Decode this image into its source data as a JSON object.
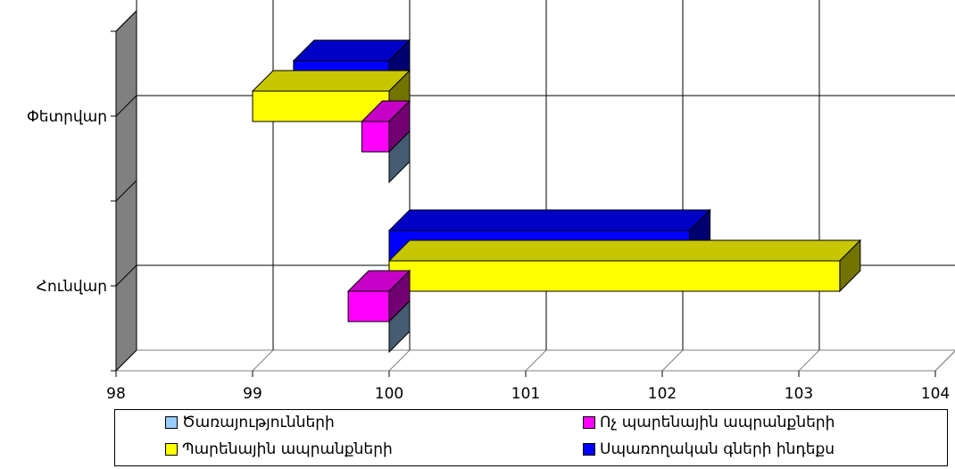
{
  "chart_data": {
    "type": "bar",
    "orientation": "horizontal",
    "categories": [
      "Հունվար",
      "Փետրվար"
    ],
    "xlim": [
      98,
      104
    ],
    "xticks": [
      "98",
      "99",
      "100",
      "101",
      "102",
      "103",
      "104"
    ],
    "baseline": 100,
    "grid": true,
    "legend_position": "bottom",
    "series": [
      {
        "name": "Ծառայությունների",
        "color": "#99ccff",
        "values": [
          100.0,
          100.0
        ]
      },
      {
        "name": "Ոչ պարենային ապրանքների",
        "color": "#ff00ff",
        "values": [
          99.7,
          99.8
        ]
      },
      {
        "name": "Պարենային ապրանքների",
        "color": "#ffff00",
        "values": [
          103.3,
          99.0
        ]
      },
      {
        "name": "Սպառողական գների ինդեքս",
        "color": "#0000ff",
        "values": [
          102.2,
          99.3
        ]
      }
    ]
  }
}
